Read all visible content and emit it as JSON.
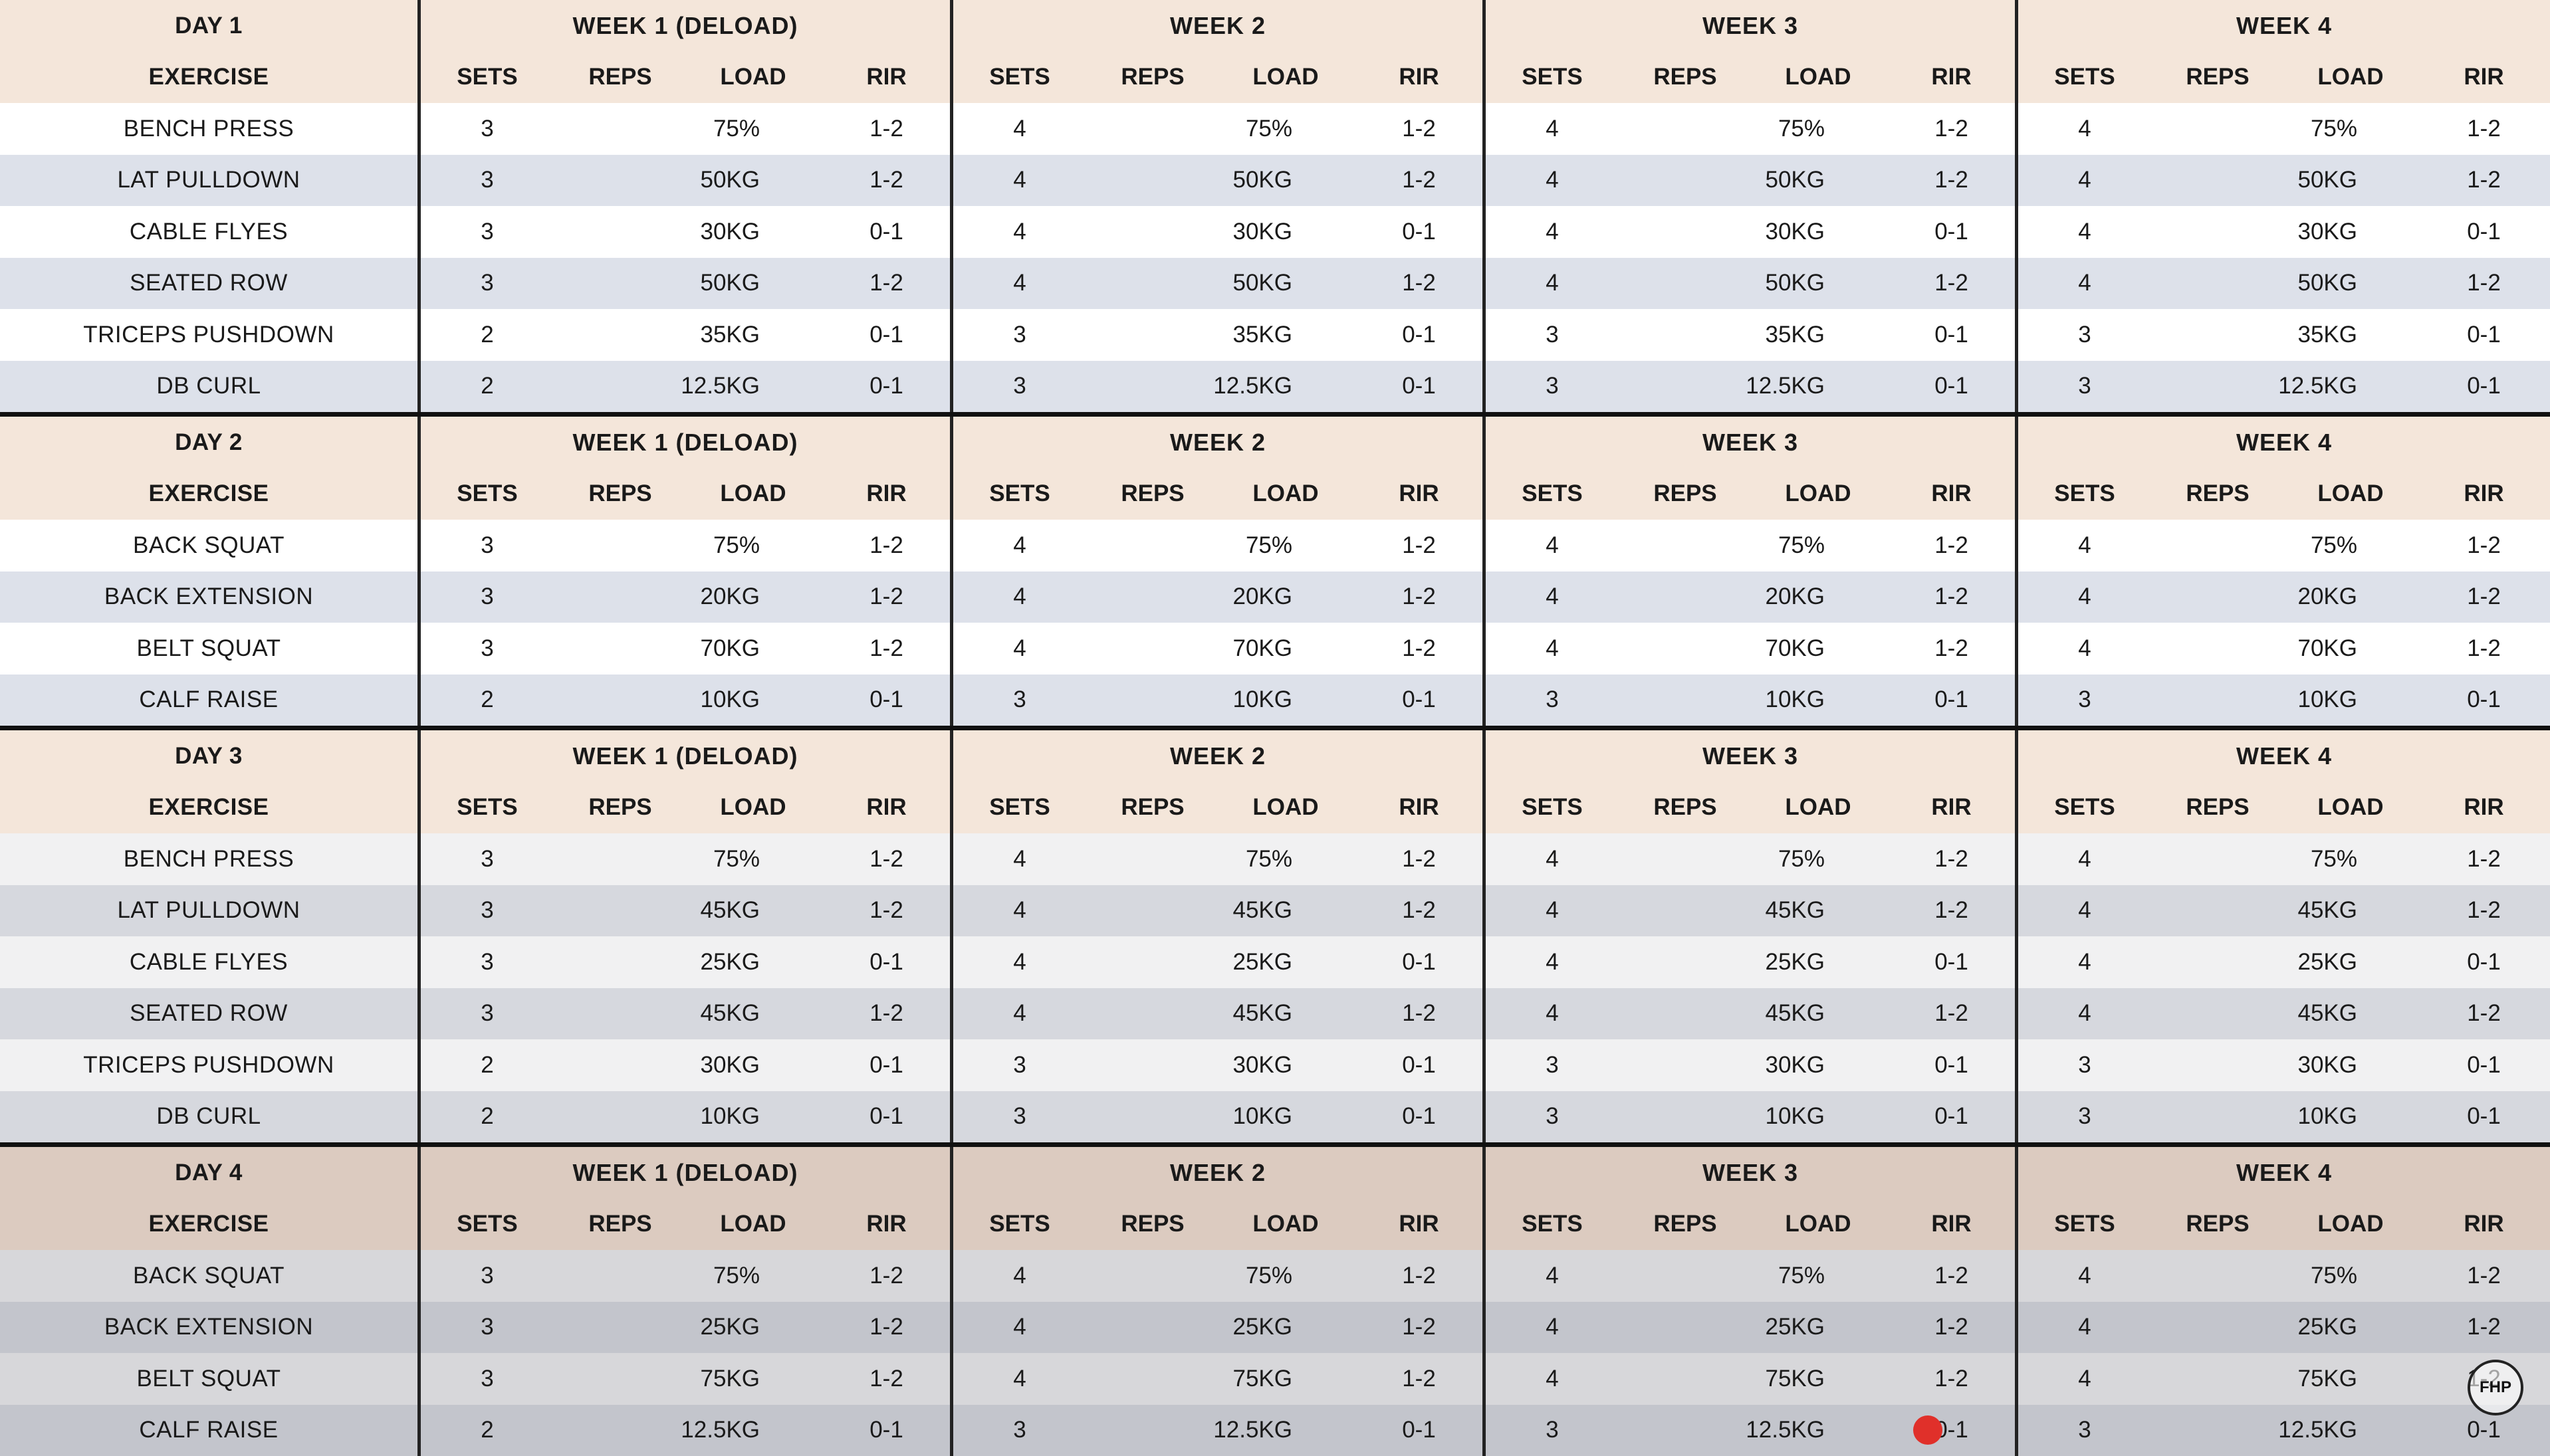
{
  "headers": {
    "exercise": "EXERCISE",
    "sets": "SETS",
    "reps": "REPS",
    "load": "LOAD",
    "rir": "RIR"
  },
  "days": [
    {
      "day": "DAY 1",
      "weeks": [
        "WEEK 1 (DELOAD)",
        "WEEK 2",
        "WEEK 3",
        "WEEK 4"
      ],
      "rows": [
        {
          "exercise": "BENCH PRESS",
          "cells": [
            [
              "3",
              "",
              "75%",
              "1-2"
            ],
            [
              "4",
              "",
              "75%",
              "1-2"
            ],
            [
              "4",
              "",
              "75%",
              "1-2"
            ],
            [
              "4",
              "",
              "75%",
              "1-2"
            ]
          ]
        },
        {
          "exercise": "LAT PULLDOWN",
          "cells": [
            [
              "3",
              "",
              "50KG",
              "1-2"
            ],
            [
              "4",
              "",
              "50KG",
              "1-2"
            ],
            [
              "4",
              "",
              "50KG",
              "1-2"
            ],
            [
              "4",
              "",
              "50KG",
              "1-2"
            ]
          ]
        },
        {
          "exercise": "CABLE FLYES",
          "cells": [
            [
              "3",
              "",
              "30KG",
              "0-1"
            ],
            [
              "4",
              "",
              "30KG",
              "0-1"
            ],
            [
              "4",
              "",
              "30KG",
              "0-1"
            ],
            [
              "4",
              "",
              "30KG",
              "0-1"
            ]
          ]
        },
        {
          "exercise": "SEATED ROW",
          "cells": [
            [
              "3",
              "",
              "50KG",
              "1-2"
            ],
            [
              "4",
              "",
              "50KG",
              "1-2"
            ],
            [
              "4",
              "",
              "50KG",
              "1-2"
            ],
            [
              "4",
              "",
              "50KG",
              "1-2"
            ]
          ]
        },
        {
          "exercise": "TRICEPS PUSHDOWN",
          "cells": [
            [
              "2",
              "",
              "35KG",
              "0-1"
            ],
            [
              "3",
              "",
              "35KG",
              "0-1"
            ],
            [
              "3",
              "",
              "35KG",
              "0-1"
            ],
            [
              "3",
              "",
              "35KG",
              "0-1"
            ]
          ]
        },
        {
          "exercise": "DB CURL",
          "cells": [
            [
              "2",
              "",
              "12.5KG",
              "0-1"
            ],
            [
              "3",
              "",
              "12.5KG",
              "0-1"
            ],
            [
              "3",
              "",
              "12.5KG",
              "0-1"
            ],
            [
              "3",
              "",
              "12.5KG",
              "0-1"
            ]
          ]
        }
      ]
    },
    {
      "day": "DAY 2",
      "weeks": [
        "WEEK 1 (DELOAD)",
        "WEEK 2",
        "WEEK 3",
        "WEEK 4"
      ],
      "rows": [
        {
          "exercise": "BACK SQUAT",
          "cells": [
            [
              "3",
              "",
              "75%",
              "1-2"
            ],
            [
              "4",
              "",
              "75%",
              "1-2"
            ],
            [
              "4",
              "",
              "75%",
              "1-2"
            ],
            [
              "4",
              "",
              "75%",
              "1-2"
            ]
          ]
        },
        {
          "exercise": "BACK EXTENSION",
          "cells": [
            [
              "3",
              "",
              "20KG",
              "1-2"
            ],
            [
              "4",
              "",
              "20KG",
              "1-2"
            ],
            [
              "4",
              "",
              "20KG",
              "1-2"
            ],
            [
              "4",
              "",
              "20KG",
              "1-2"
            ]
          ]
        },
        {
          "exercise": "BELT SQUAT",
          "cells": [
            [
              "3",
              "",
              "70KG",
              "1-2"
            ],
            [
              "4",
              "",
              "70KG",
              "1-2"
            ],
            [
              "4",
              "",
              "70KG",
              "1-2"
            ],
            [
              "4",
              "",
              "70KG",
              "1-2"
            ]
          ]
        },
        {
          "exercise": "CALF RAISE",
          "cells": [
            [
              "2",
              "",
              "10KG",
              "0-1"
            ],
            [
              "3",
              "",
              "10KG",
              "0-1"
            ],
            [
              "3",
              "",
              "10KG",
              "0-1"
            ],
            [
              "3",
              "",
              "10KG",
              "0-1"
            ]
          ]
        }
      ]
    },
    {
      "day": "DAY 3",
      "weeks": [
        "WEEK 1 (DELOAD)",
        "WEEK 2",
        "WEEK 3",
        "WEEK 4"
      ],
      "rows": [
        {
          "exercise": "BENCH PRESS",
          "cells": [
            [
              "3",
              "",
              "75%",
              "1-2"
            ],
            [
              "4",
              "",
              "75%",
              "1-2"
            ],
            [
              "4",
              "",
              "75%",
              "1-2"
            ],
            [
              "4",
              "",
              "75%",
              "1-2"
            ]
          ]
        },
        {
          "exercise": "LAT PULLDOWN",
          "cells": [
            [
              "3",
              "",
              "45KG",
              "1-2"
            ],
            [
              "4",
              "",
              "45KG",
              "1-2"
            ],
            [
              "4",
              "",
              "45KG",
              "1-2"
            ],
            [
              "4",
              "",
              "45KG",
              "1-2"
            ]
          ]
        },
        {
          "exercise": "CABLE FLYES",
          "cells": [
            [
              "3",
              "",
              "25KG",
              "0-1"
            ],
            [
              "4",
              "",
              "25KG",
              "0-1"
            ],
            [
              "4",
              "",
              "25KG",
              "0-1"
            ],
            [
              "4",
              "",
              "25KG",
              "0-1"
            ]
          ]
        },
        {
          "exercise": "SEATED ROW",
          "cells": [
            [
              "3",
              "",
              "45KG",
              "1-2"
            ],
            [
              "4",
              "",
              "45KG",
              "1-2"
            ],
            [
              "4",
              "",
              "45KG",
              "1-2"
            ],
            [
              "4",
              "",
              "45KG",
              "1-2"
            ]
          ]
        },
        {
          "exercise": "TRICEPS PUSHDOWN",
          "cells": [
            [
              "2",
              "",
              "30KG",
              "0-1"
            ],
            [
              "3",
              "",
              "30KG",
              "0-1"
            ],
            [
              "3",
              "",
              "30KG",
              "0-1"
            ],
            [
              "3",
              "",
              "30KG",
              "0-1"
            ]
          ]
        },
        {
          "exercise": "DB CURL",
          "cells": [
            [
              "2",
              "",
              "10KG",
              "0-1"
            ],
            [
              "3",
              "",
              "10KG",
              "0-1"
            ],
            [
              "3",
              "",
              "10KG",
              "0-1"
            ],
            [
              "3",
              "",
              "10KG",
              "0-1"
            ]
          ]
        }
      ]
    },
    {
      "day": "DAY 4",
      "weeks": [
        "WEEK 1 (DELOAD)",
        "WEEK 2",
        "WEEK 3",
        "WEEK 4"
      ],
      "rows": [
        {
          "exercise": "BACK SQUAT",
          "cells": [
            [
              "3",
              "",
              "75%",
              "1-2"
            ],
            [
              "4",
              "",
              "75%",
              "1-2"
            ],
            [
              "4",
              "",
              "75%",
              "1-2"
            ],
            [
              "4",
              "",
              "75%",
              "1-2"
            ]
          ]
        },
        {
          "exercise": "BACK EXTENSION",
          "cells": [
            [
              "3",
              "",
              "25KG",
              "1-2"
            ],
            [
              "4",
              "",
              "25KG",
              "1-2"
            ],
            [
              "4",
              "",
              "25KG",
              "1-2"
            ],
            [
              "4",
              "",
              "25KG",
              "1-2"
            ]
          ]
        },
        {
          "exercise": "BELT SQUAT",
          "cells": [
            [
              "3",
              "",
              "75KG",
              "1-2"
            ],
            [
              "4",
              "",
              "75KG",
              "1-2"
            ],
            [
              "4",
              "",
              "75KG",
              "1-2"
            ],
            [
              "4",
              "",
              "75KG",
              "1-2"
            ]
          ]
        },
        {
          "exercise": "CALF RAISE",
          "cells": [
            [
              "2",
              "",
              "12.5KG",
              "0-1"
            ],
            [
              "3",
              "",
              "12.5KG",
              "0-1"
            ],
            [
              "3",
              "",
              "12.5KG",
              "0-1"
            ],
            [
              "3",
              "",
              "12.5KG",
              "0-1"
            ]
          ]
        }
      ]
    }
  ],
  "watermark": {
    "text": "FHP",
    "icon": "channel-logo-icon"
  },
  "colors": {
    "header": "#f4e6da",
    "row_alt": "#dde1ea",
    "grid_line": "#222222"
  }
}
